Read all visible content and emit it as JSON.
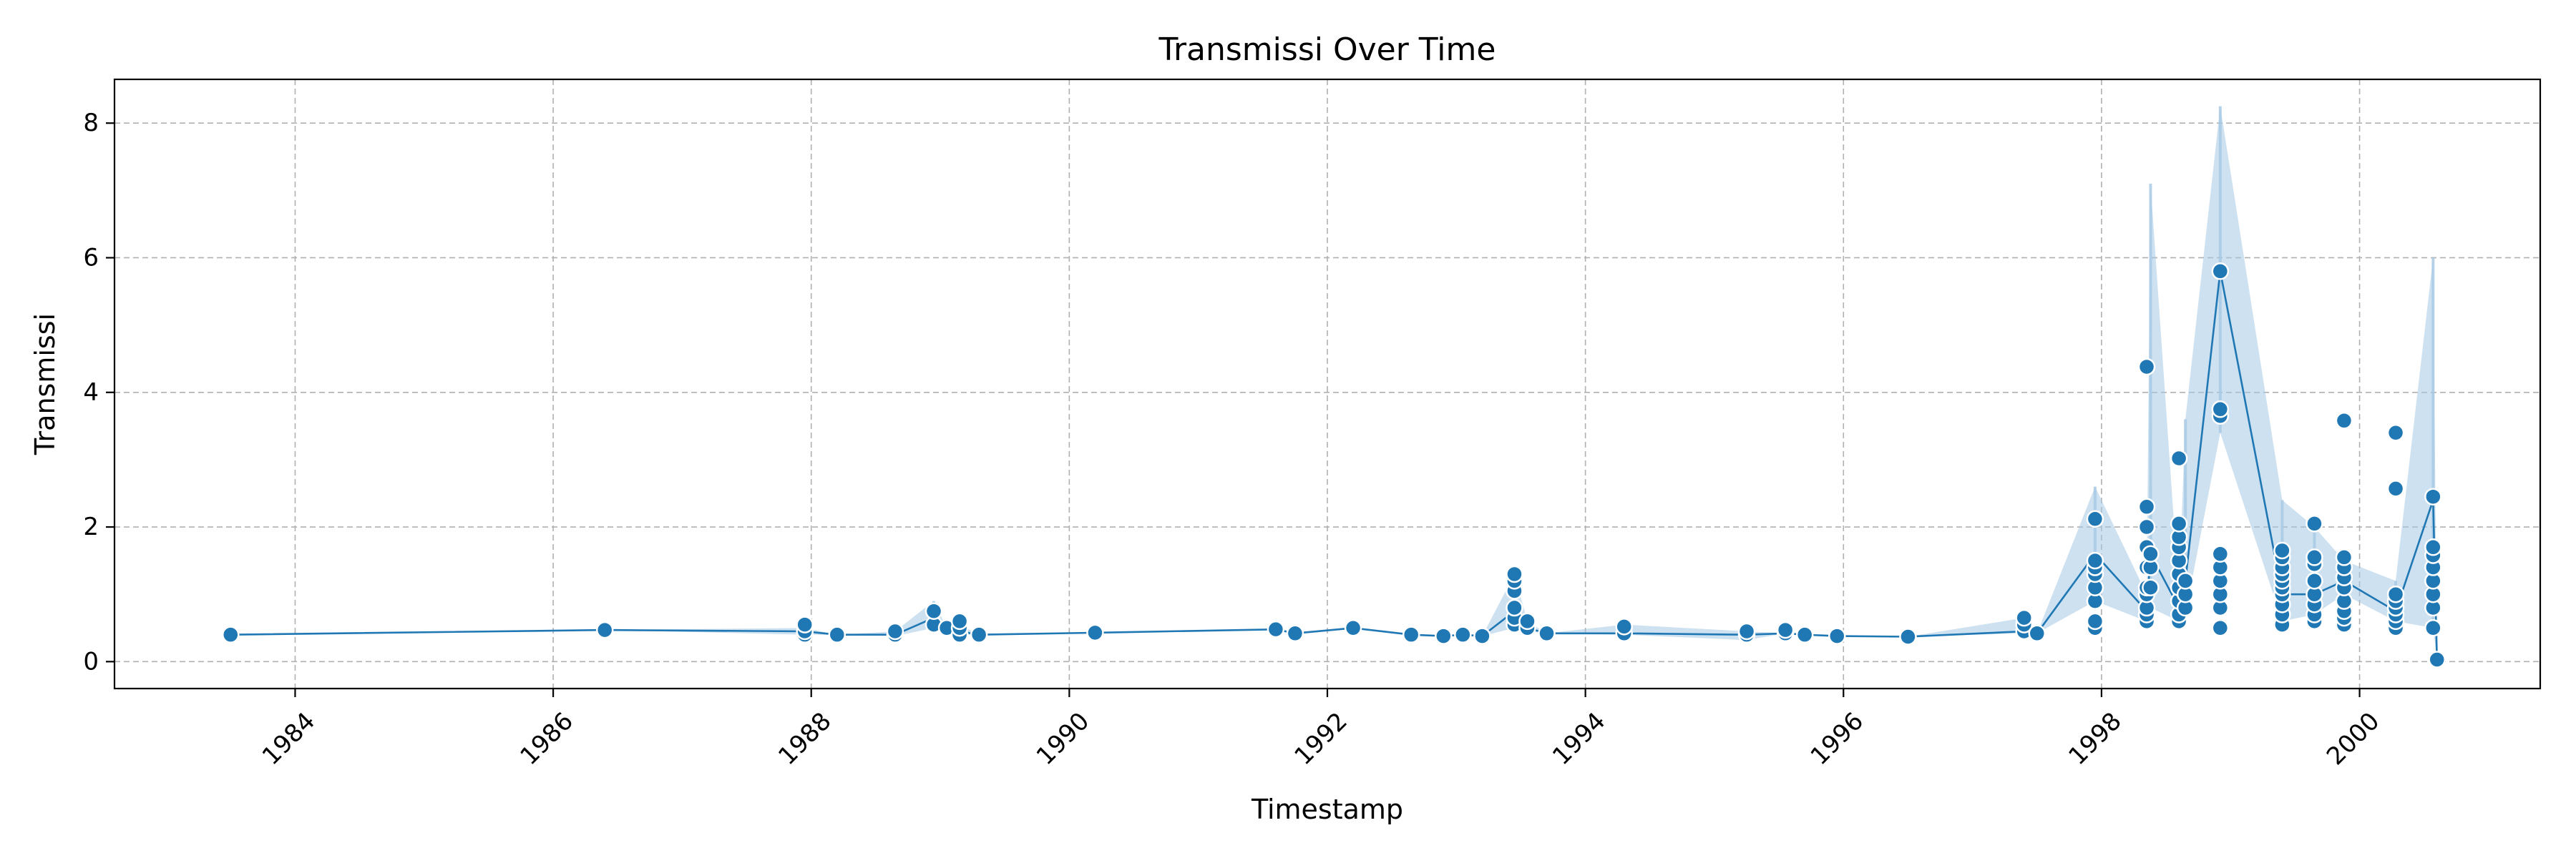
{
  "chart_data": {
    "type": "line",
    "title": "Transmissi Over Time",
    "xlabel": "Timestamp",
    "ylabel": "Transmissi",
    "xlim": [
      1982.6,
      2001.4
    ],
    "ylim": [
      -0.4,
      8.65
    ],
    "xticks": [
      "1984",
      "1986",
      "1988",
      "1990",
      "1992",
      "1994",
      "1996",
      "1998",
      "2000"
    ],
    "yticks": [
      "0",
      "2",
      "4",
      "6",
      "8"
    ],
    "grid": true,
    "legend": "none",
    "colors": {
      "line": "#1f77b4",
      "band": "#a6c8e3",
      "marker_edge": "#ffffff"
    },
    "series": [
      {
        "values": [
          {
            "x": 1983.5,
            "y": 0.4,
            "points": [
              0.4
            ]
          },
          {
            "x": 1986.4,
            "y": 0.47,
            "points": [
              0.47
            ]
          },
          {
            "x": 1987.95,
            "y": 0.45,
            "points": [
              0.4,
              0.45,
              0.55
            ],
            "lo": 0.4,
            "hi": 0.5
          },
          {
            "x": 1988.2,
            "y": 0.4,
            "points": [
              0.4
            ]
          },
          {
            "x": 1988.65,
            "y": 0.4,
            "points": [
              0.4,
              0.45
            ],
            "lo": 0.38,
            "hi": 0.45
          },
          {
            "x": 1988.95,
            "y": 0.65,
            "points": [
              0.55,
              0.75
            ],
            "lo": 0.5,
            "hi": 0.9
          },
          {
            "x": 1989.05,
            "y": 0.5,
            "points": [
              0.5
            ]
          },
          {
            "x": 1989.15,
            "y": 0.45,
            "points": [
              0.4,
              0.5,
              0.6
            ],
            "lo": 0.4,
            "hi": 0.55
          },
          {
            "x": 1989.3,
            "y": 0.4,
            "points": [
              0.4
            ]
          },
          {
            "x": 1990.2,
            "y": 0.43,
            "points": [
              0.43
            ]
          },
          {
            "x": 1991.6,
            "y": 0.48,
            "points": [
              0.48
            ]
          },
          {
            "x": 1991.75,
            "y": 0.42,
            "points": [
              0.42
            ]
          },
          {
            "x": 1992.2,
            "y": 0.5,
            "points": [
              0.5
            ]
          },
          {
            "x": 1992.65,
            "y": 0.4,
            "points": [
              0.4
            ]
          },
          {
            "x": 1992.9,
            "y": 0.38,
            "points": [
              0.38
            ]
          },
          {
            "x": 1993.05,
            "y": 0.4,
            "points": [
              0.4
            ]
          },
          {
            "x": 1993.2,
            "y": 0.38,
            "points": [
              0.38
            ]
          },
          {
            "x": 1993.45,
            "y": 0.75,
            "points": [
              0.55,
              0.65,
              0.8,
              1.05,
              1.2,
              1.3
            ],
            "lo": 0.5,
            "hi": 1.3
          },
          {
            "x": 1993.55,
            "y": 0.5,
            "points": [
              0.5,
              0.6
            ],
            "lo": 0.45,
            "hi": 0.6
          },
          {
            "x": 1993.7,
            "y": 0.42,
            "points": [
              0.42
            ]
          },
          {
            "x": 1994.3,
            "y": 0.42,
            "points": [
              0.42,
              0.52
            ],
            "lo": 0.4,
            "hi": 0.55
          },
          {
            "x": 1995.25,
            "y": 0.4,
            "points": [
              0.4,
              0.45
            ],
            "lo": 0.32,
            "hi": 0.45
          },
          {
            "x": 1995.55,
            "y": 0.42,
            "points": [
              0.42,
              0.47
            ]
          },
          {
            "x": 1995.7,
            "y": 0.4,
            "points": [
              0.4
            ]
          },
          {
            "x": 1995.95,
            "y": 0.38,
            "points": [
              0.38
            ]
          },
          {
            "x": 1996.5,
            "y": 0.37,
            "points": [
              0.37
            ]
          },
          {
            "x": 1997.4,
            "y": 0.45,
            "points": [
              0.45,
              0.55,
              0.65
            ],
            "lo": 0.42,
            "hi": 0.65
          },
          {
            "x": 1997.5,
            "y": 0.42,
            "points": [
              0.42
            ]
          },
          {
            "x": 1997.95,
            "y": 1.6,
            "points": [
              0.5,
              0.6,
              0.9,
              1.1,
              1.3,
              1.4,
              1.5,
              2.12
            ],
            "lo": 0.9,
            "hi": 2.6
          },
          {
            "x": 1998.35,
            "y": 0.75,
            "points": [
              0.6,
              0.7,
              0.8,
              1.0,
              1.1,
              1.4,
              1.7,
              2.0,
              2.3,
              4.38
            ],
            "lo": 0.6,
            "hi": 1.0
          },
          {
            "x": 1998.38,
            "y": 1.6,
            "points": [
              1.1,
              1.4,
              1.6
            ],
            "lo": 0.8,
            "hi": 7.1
          },
          {
            "x": 1998.6,
            "y": 0.8,
            "points": [
              0.6,
              0.7,
              0.9,
              1.1,
              1.3,
              1.5,
              1.7,
              1.85,
              2.05,
              3.02
            ],
            "lo": 0.6,
            "hi": 1.0
          },
          {
            "x": 1998.65,
            "y": 1.2,
            "points": [
              0.8,
              1.0,
              1.2
            ],
            "lo": 0.7,
            "hi": 3.6
          },
          {
            "x": 1998.92,
            "y": 5.8,
            "points": [
              0.5,
              0.8,
              1.0,
              1.2,
              1.4,
              1.6,
              3.65,
              3.75,
              5.8
            ],
            "lo": 3.4,
            "hi": 8.25
          },
          {
            "x": 1999.4,
            "y": 1.0,
            "points": [
              0.55,
              0.7,
              0.85,
              1.0,
              1.1,
              1.2,
              1.3,
              1.4,
              1.55,
              1.65
            ],
            "lo": 0.6,
            "hi": 2.4
          },
          {
            "x": 1999.65,
            "y": 1.0,
            "points": [
              0.6,
              0.7,
              0.85,
              1.0,
              1.2,
              1.45,
              1.55,
              2.05
            ],
            "lo": 0.7,
            "hi": 2.0
          },
          {
            "x": 1999.88,
            "y": 1.2,
            "points": [
              0.55,
              0.65,
              0.75,
              0.9,
              1.1,
              1.25,
              1.4,
              1.55,
              3.58
            ],
            "lo": 1.0,
            "hi": 1.5
          },
          {
            "x": 2000.28,
            "y": 0.75,
            "points": [
              0.5,
              0.6,
              0.7,
              0.8,
              0.9,
              1.0,
              2.57,
              3.4
            ],
            "lo": 0.6,
            "hi": 1.2
          },
          {
            "x": 2000.57,
            "y": 2.4,
            "points": [
              0.5,
              0.8,
              1.0,
              1.2,
              1.4,
              1.58,
              1.7,
              2.45
            ],
            "lo": 0.5,
            "hi": 6.0
          },
          {
            "x": 2000.6,
            "y": 0.03,
            "points": [
              0.03
            ]
          }
        ]
      }
    ]
  }
}
